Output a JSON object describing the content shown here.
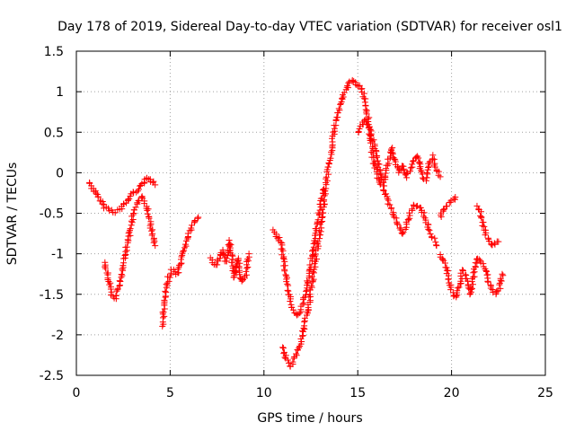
{
  "chart_data": {
    "type": "scatter",
    "title": "Day 178 of 2019, Sidereal Day-to-day VTEC variation (SDTVAR) for receiver osl1",
    "xlabel": "GPS time / hours",
    "ylabel": "SDTVAR / TECUs",
    "xlim": [
      0,
      25
    ],
    "ylim": [
      -2.5,
      1.5
    ],
    "xticks": [
      0,
      5,
      10,
      15,
      20,
      25
    ],
    "xtick_labels": [
      "0",
      "5",
      "10",
      "15",
      "20",
      "25"
    ],
    "yticks": [
      -2.5,
      -2,
      -1.5,
      -1,
      -0.5,
      0,
      0.5,
      1,
      1.5
    ],
    "ytick_labels": [
      "-2.5",
      "-2",
      "-1.5",
      "-1",
      "-0.5",
      "0",
      "0.5",
      "1",
      "1.5"
    ],
    "grid": true,
    "marker": "+",
    "color": "#ff0000",
    "series": [
      {
        "name": "trace-1",
        "points": [
          [
            0.7,
            -0.12
          ],
          [
            0.9,
            -0.2
          ],
          [
            1.1,
            -0.28
          ],
          [
            1.3,
            -0.35
          ],
          [
            1.5,
            -0.42
          ],
          [
            1.8,
            -0.46
          ],
          [
            2.1,
            -0.48
          ],
          [
            2.4,
            -0.44
          ],
          [
            2.7,
            -0.35
          ],
          [
            3.0,
            -0.25
          ],
          [
            3.3,
            -0.2
          ],
          [
            3.6,
            -0.12
          ],
          [
            3.8,
            -0.05
          ],
          [
            4.0,
            -0.1
          ],
          [
            4.2,
            -0.15
          ]
        ]
      },
      {
        "name": "trace-2",
        "points": [
          [
            1.5,
            -1.1
          ],
          [
            1.7,
            -1.3
          ],
          [
            1.9,
            -1.5
          ],
          [
            2.1,
            -1.55
          ],
          [
            2.3,
            -1.4
          ],
          [
            2.5,
            -1.1
          ],
          [
            2.8,
            -0.8
          ],
          [
            3.0,
            -0.55
          ],
          [
            3.2,
            -0.4
          ],
          [
            3.5,
            -0.3
          ],
          [
            3.8,
            -0.45
          ],
          [
            4.0,
            -0.7
          ],
          [
            4.2,
            -0.9
          ]
        ]
      },
      {
        "name": "trace-3",
        "points": [
          [
            4.6,
            -1.88
          ],
          [
            4.7,
            -1.6
          ],
          [
            4.9,
            -1.3
          ],
          [
            5.1,
            -1.2
          ],
          [
            5.4,
            -1.25
          ],
          [
            5.6,
            -1.1
          ],
          [
            5.8,
            -0.9
          ],
          [
            6.0,
            -0.75
          ],
          [
            6.2,
            -0.65
          ],
          [
            6.5,
            -0.55
          ]
        ]
      },
      {
        "name": "trace-4",
        "points": [
          [
            7.2,
            -1.05
          ],
          [
            7.4,
            -1.15
          ],
          [
            7.6,
            -1.05
          ],
          [
            7.8,
            -0.95
          ],
          [
            8.0,
            -1.1
          ],
          [
            8.2,
            -0.85
          ],
          [
            8.4,
            -1.3
          ],
          [
            8.6,
            -1.05
          ],
          [
            8.8,
            -1.35
          ],
          [
            9.0,
            -1.3
          ],
          [
            9.2,
            -1.0
          ]
        ]
      },
      {
        "name": "trace-5",
        "points": [
          [
            10.5,
            -0.7
          ],
          [
            10.7,
            -0.8
          ],
          [
            10.9,
            -0.85
          ],
          [
            11.0,
            -1.0
          ],
          [
            11.2,
            -1.3
          ],
          [
            11.4,
            -1.6
          ],
          [
            11.6,
            -1.72
          ],
          [
            11.8,
            -1.75
          ],
          [
            12.0,
            -1.68
          ],
          [
            12.2,
            -1.5
          ],
          [
            12.4,
            -1.25
          ],
          [
            12.6,
            -1.0
          ],
          [
            12.8,
            -0.7
          ],
          [
            13.0,
            -0.4
          ],
          [
            13.2,
            -0.2
          ]
        ]
      },
      {
        "name": "trace-6",
        "points": [
          [
            11.0,
            -2.15
          ],
          [
            11.2,
            -2.3
          ],
          [
            11.4,
            -2.4
          ],
          [
            11.6,
            -2.3
          ],
          [
            11.8,
            -2.2
          ],
          [
            12.0,
            -2.05
          ],
          [
            12.2,
            -1.85
          ],
          [
            12.4,
            -1.6
          ],
          [
            12.6,
            -1.3
          ],
          [
            12.8,
            -1.0
          ],
          [
            13.0,
            -0.7
          ],
          [
            13.2,
            -0.35
          ],
          [
            13.4,
            0.0
          ],
          [
            13.6,
            0.3
          ],
          [
            13.8,
            0.6
          ],
          [
            14.0,
            0.8
          ],
          [
            14.2,
            0.95
          ],
          [
            14.5,
            1.08
          ],
          [
            14.7,
            1.15
          ],
          [
            14.9,
            1.1
          ],
          [
            15.2,
            1.05
          ],
          [
            15.4,
            0.9
          ],
          [
            15.6,
            0.6
          ],
          [
            15.8,
            0.2
          ],
          [
            16.0,
            0.0
          ],
          [
            16.2,
            -0.15
          ],
          [
            16.4,
            -0.1
          ],
          [
            16.6,
            0.1
          ],
          [
            16.8,
            0.3
          ],
          [
            17.0,
            0.15
          ],
          [
            17.2,
            0.0
          ],
          [
            17.4,
            0.1
          ],
          [
            17.6,
            -0.05
          ],
          [
            17.8,
            0.05
          ],
          [
            18.0,
            0.15
          ],
          [
            18.2,
            0.2
          ],
          [
            18.4,
            0.0
          ],
          [
            18.6,
            -0.1
          ],
          [
            18.8,
            0.1
          ],
          [
            19.0,
            0.2
          ],
          [
            19.2,
            0.05
          ],
          [
            19.4,
            -0.05
          ]
        ]
      },
      {
        "name": "trace-7",
        "points": [
          [
            15.0,
            0.5
          ],
          [
            15.2,
            0.58
          ],
          [
            15.4,
            0.65
          ],
          [
            15.6,
            0.55
          ],
          [
            15.8,
            0.4
          ],
          [
            16.0,
            0.2
          ],
          [
            16.2,
            0.0
          ],
          [
            16.4,
            -0.2
          ],
          [
            16.6,
            -0.35
          ],
          [
            16.8,
            -0.45
          ],
          [
            17.0,
            -0.55
          ],
          [
            17.2,
            -0.68
          ],
          [
            17.4,
            -0.75
          ],
          [
            17.6,
            -0.65
          ],
          [
            17.8,
            -0.5
          ],
          [
            18.0,
            -0.4
          ],
          [
            18.2,
            -0.4
          ],
          [
            18.4,
            -0.45
          ],
          [
            18.6,
            -0.55
          ],
          [
            18.8,
            -0.7
          ],
          [
            19.0,
            -0.8
          ],
          [
            19.2,
            -0.9
          ]
        ]
      },
      {
        "name": "trace-8",
        "points": [
          [
            19.4,
            -1.0
          ],
          [
            19.6,
            -1.1
          ],
          [
            19.8,
            -1.25
          ],
          [
            20.0,
            -1.45
          ],
          [
            20.2,
            -1.55
          ],
          [
            20.4,
            -1.4
          ],
          [
            20.6,
            -1.2
          ],
          [
            20.8,
            -1.3
          ],
          [
            21.0,
            -1.5
          ],
          [
            21.2,
            -1.25
          ],
          [
            21.4,
            -1.05
          ],
          [
            21.6,
            -1.1
          ],
          [
            21.8,
            -1.2
          ],
          [
            22.0,
            -1.35
          ],
          [
            22.2,
            -1.45
          ],
          [
            22.4,
            -1.5
          ],
          [
            22.6,
            -1.4
          ],
          [
            22.7,
            -1.25
          ]
        ]
      },
      {
        "name": "trace-9",
        "points": [
          [
            19.4,
            -0.55
          ],
          [
            19.6,
            -0.45
          ],
          [
            19.8,
            -0.4
          ],
          [
            20.0,
            -0.35
          ],
          [
            20.2,
            -0.3
          ]
        ]
      },
      {
        "name": "trace-10",
        "points": [
          [
            21.4,
            -0.42
          ],
          [
            21.6,
            -0.55
          ],
          [
            21.8,
            -0.75
          ],
          [
            22.0,
            -0.85
          ],
          [
            22.2,
            -0.9
          ],
          [
            22.5,
            -0.85
          ]
        ]
      }
    ]
  }
}
